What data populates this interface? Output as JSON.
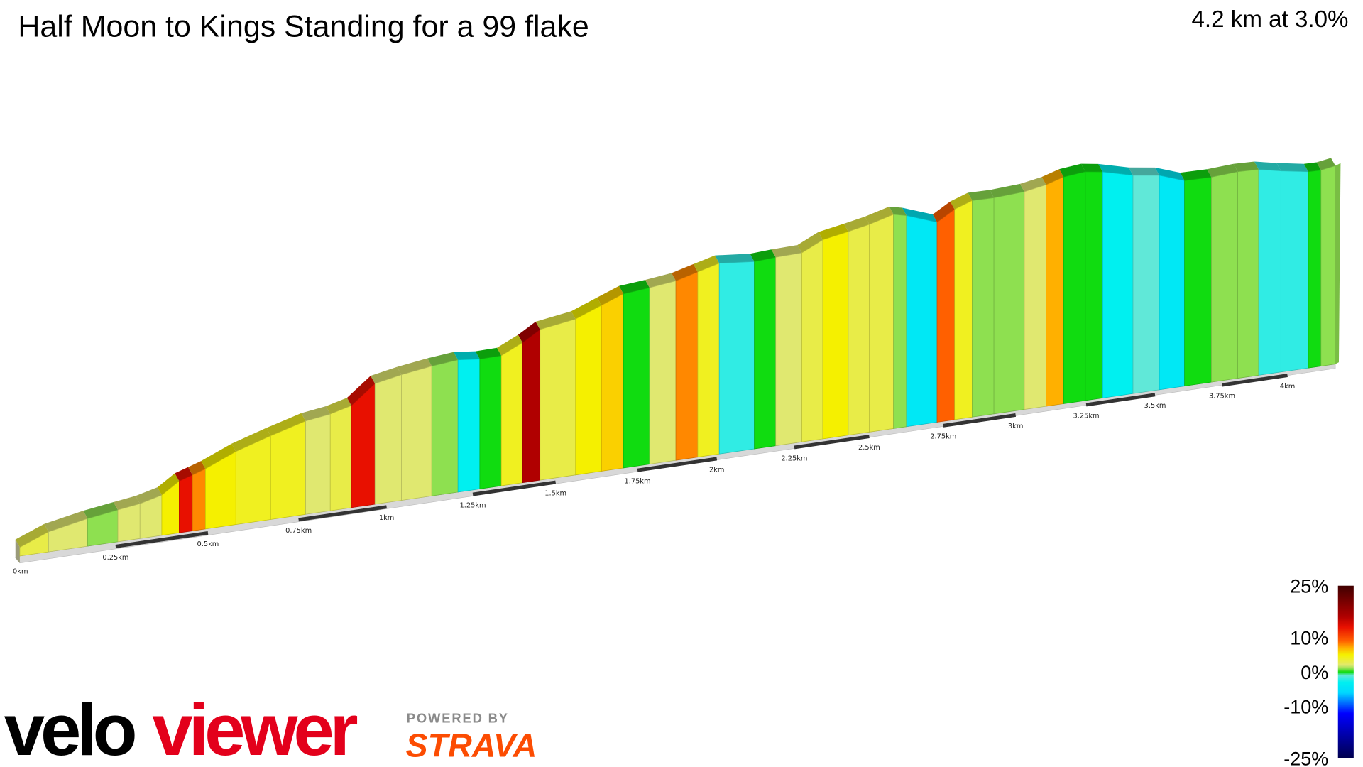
{
  "header": {
    "title": "Half Moon to Kings Standing for a 99 flake",
    "summary": "4.2 km at 3.0%"
  },
  "chart_data": {
    "type": "area",
    "subtype": "3d-gradient-elevation-profile",
    "title": "Half Moon to Kings Standing for a 99 flake",
    "xlabel": "",
    "ylabel": "",
    "xlim": [
      0,
      4.2
    ],
    "distance_km": [
      0,
      0.075,
      0.177,
      0.256,
      0.316,
      0.375,
      0.422,
      0.458,
      0.493,
      0.577,
      0.673,
      0.77,
      0.84,
      0.9,
      0.967,
      1.043,
      1.131,
      1.207,
      1.271,
      1.336,
      1.4,
      1.453,
      1.561,
      1.64,
      1.707,
      1.788,
      1.871,
      1.94,
      2.008,
      2.121,
      2.19,
      2.275,
      2.345,
      2.43,
      2.5,
      2.582,
      2.626,
      2.729,
      2.789,
      2.85,
      2.925,
      3.031,
      3.108,
      3.17,
      3.247,
      3.31,
      3.42,
      3.516,
      3.61,
      3.71,
      3.81,
      3.89,
      3.975,
      4.087,
      4.14,
      4.2
    ],
    "elevation_rel_m": [
      5.8,
      13.3,
      18.3,
      21.1,
      23.1,
      26.7,
      34.3,
      37.1,
      39.9,
      48.4,
      55.5,
      61.9,
      64.1,
      67.7,
      80,
      83.3,
      86.1,
      87.7,
      86.1,
      86.3,
      92.9,
      99.9,
      103.4,
      110,
      115.5,
      117,
      119,
      122.8,
      126.5,
      124.2,
      125,
      125.4,
      132,
      135,
      137.7,
      142,
      140,
      132.6,
      139.5,
      143.6,
      143.3,
      144.4,
      146.9,
      150.4,
      151.8,
      150,
      144.8,
      142.2,
      136.3,
      136,
      137,
      136.5,
      133.4,
      130.2,
      130,
      131.5
    ],
    "grade_pct": [
      3,
      2,
      1,
      2,
      2,
      5,
      13,
      8,
      5,
      4,
      4,
      2,
      3,
      13,
      2,
      2,
      1,
      -3,
      0,
      4,
      16,
      3,
      5,
      6,
      0,
      2,
      8,
      4,
      -2,
      0,
      2,
      3,
      5,
      3,
      3,
      1,
      -4,
      9,
      4,
      1,
      1,
      2,
      7,
      0,
      0,
      -3,
      -1,
      -4,
      0,
      1,
      1,
      -2,
      -2,
      0,
      1
    ],
    "x_ticks": [
      "0km",
      "0.25km",
      "0.5km",
      "0.75km",
      "1km",
      "1.25km",
      "1.5km",
      "1.75km",
      "2km",
      "2.25km",
      "2.5km",
      "2.75km",
      "3km",
      "3.25km",
      "3.5km",
      "3.75km",
      "4km"
    ],
    "x_tick_values": [
      0,
      0.25,
      0.5,
      0.75,
      1,
      1.25,
      1.5,
      1.75,
      2,
      2.25,
      2.5,
      2.75,
      3,
      3.25,
      3.5,
      3.75,
      4
    ],
    "color_scale": {
      "labels": [
        "25%",
        "10%",
        "0%",
        "-10%",
        "-25%"
      ],
      "label_values": [
        25,
        10,
        0,
        -10,
        -25
      ],
      "range": [
        -25,
        25
      ],
      "stops": [
        {
          "v": -25,
          "c": "#00004d"
        },
        {
          "v": -12,
          "c": "#0000ff"
        },
        {
          "v": -6,
          "c": "#00d8ff"
        },
        {
          "v": -3,
          "c": "#00f0f0"
        },
        {
          "v": -1,
          "c": "#60e8d8"
        },
        {
          "v": 0,
          "c": "#10dc10"
        },
        {
          "v": 1,
          "c": "#8ee050"
        },
        {
          "v": 2,
          "c": "#e0e870"
        },
        {
          "v": 4,
          "c": "#f0f020"
        },
        {
          "v": 5,
          "c": "#f5f000"
        },
        {
          "v": 7,
          "c": "#ffb000"
        },
        {
          "v": 9,
          "c": "#ff6000"
        },
        {
          "v": 13,
          "c": "#e81000"
        },
        {
          "v": 16,
          "c": "#b00000"
        },
        {
          "v": 25,
          "c": "#400000"
        }
      ]
    },
    "legend": "bottom-right",
    "grid": false
  },
  "branding": {
    "logo_velo": "velo",
    "logo_viewer": "viewer",
    "powered_by": "POWERED BY",
    "strava": "STRAVA",
    "velo_color": "#000000",
    "viewer_color": "#e3001b",
    "strava_color": "#fc4c02"
  }
}
